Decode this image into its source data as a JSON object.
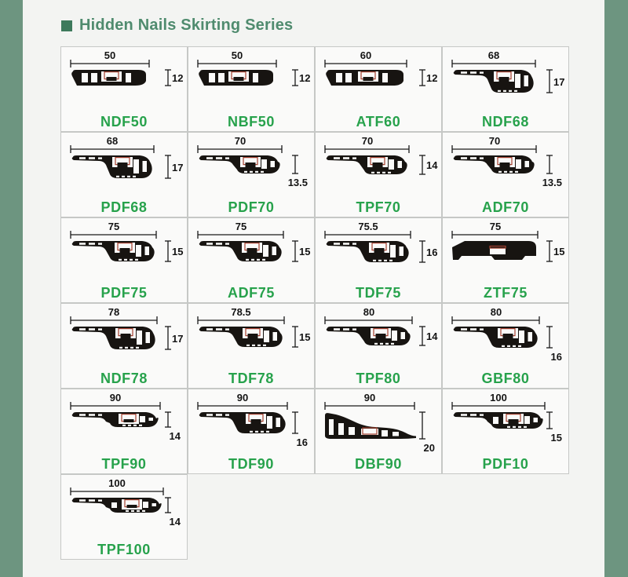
{
  "page": {
    "background": "#f3f4f2",
    "side_bar_color": "#6d9580"
  },
  "header": {
    "title": "Hidden Nails Skirting Series",
    "bullet_color": "#3d7a5c",
    "title_color": "#4f8b6e"
  },
  "grid": {
    "columns": 4,
    "model_color": "#27a24c",
    "profile_color": "#171411",
    "clip_color": "#a3402f",
    "cells": [
      {
        "model": "NDF50",
        "width_mm": 50,
        "height_mm": 12,
        "height_label_position": "side",
        "profile_style": "flat"
      },
      {
        "model": "NBF50",
        "width_mm": 50,
        "height_mm": 12,
        "height_label_position": "side",
        "profile_style": "flat"
      },
      {
        "model": "ATF60",
        "width_mm": 60,
        "height_mm": 12,
        "height_label_position": "side",
        "profile_style": "flat"
      },
      {
        "model": "NDF68",
        "width_mm": 68,
        "height_mm": 17,
        "height_label_position": "side",
        "profile_style": "swoosh"
      },
      {
        "model": "PDF68",
        "width_mm": 68,
        "height_mm": 17,
        "height_label_position": "side",
        "profile_style": "swoosh"
      },
      {
        "model": "PDF70",
        "width_mm": 70,
        "height_mm": 13.5,
        "height_label_position": "below",
        "profile_style": "swoosh"
      },
      {
        "model": "TPF70",
        "width_mm": 70,
        "height_mm": 14,
        "height_label_position": "side",
        "profile_style": "swoosh"
      },
      {
        "model": "ADF70",
        "width_mm": 70,
        "height_mm": 13.5,
        "height_label_position": "below",
        "profile_style": "swoosh"
      },
      {
        "model": "PDF75",
        "width_mm": 75,
        "height_mm": 15,
        "height_label_position": "side",
        "profile_style": "swoosh"
      },
      {
        "model": "ADF75",
        "width_mm": 75,
        "height_mm": 15,
        "height_label_position": "side",
        "profile_style": "swoosh"
      },
      {
        "model": "TDF75",
        "width_mm": 75.5,
        "height_mm": 16,
        "height_label_position": "side",
        "profile_style": "swoosh"
      },
      {
        "model": "ZTF75",
        "width_mm": 75,
        "height_mm": 15,
        "height_label_position": "side",
        "profile_style": "solid"
      },
      {
        "model": "NDF78",
        "width_mm": 78,
        "height_mm": 17,
        "height_label_position": "side",
        "profile_style": "swoosh"
      },
      {
        "model": "TDF78",
        "width_mm": 78.5,
        "height_mm": 15,
        "height_label_position": "side",
        "profile_style": "swoosh"
      },
      {
        "model": "TPF80",
        "width_mm": 80,
        "height_mm": 14,
        "height_label_position": "side",
        "profile_style": "swoosh"
      },
      {
        "model": "GBF80",
        "width_mm": 80,
        "height_mm": 16,
        "height_label_position": "below",
        "profile_style": "swoosh"
      },
      {
        "model": "TPF90",
        "width_mm": 90,
        "height_mm": 14,
        "height_label_position": "below",
        "profile_style": "swoosh-low"
      },
      {
        "model": "TDF90",
        "width_mm": 90,
        "height_mm": 16,
        "height_label_position": "below",
        "profile_style": "swoosh"
      },
      {
        "model": "DBF90",
        "width_mm": 90,
        "height_mm": 20,
        "height_label_position": "below",
        "profile_style": "wedge"
      },
      {
        "model": "PDF10",
        "width_mm": 100,
        "height_mm": 15,
        "height_label_position": "below",
        "profile_style": "swoosh-low"
      },
      {
        "model": "TPF100",
        "width_mm": 100,
        "height_mm": 14,
        "height_label_position": "below",
        "profile_style": "swoosh-low"
      }
    ]
  }
}
